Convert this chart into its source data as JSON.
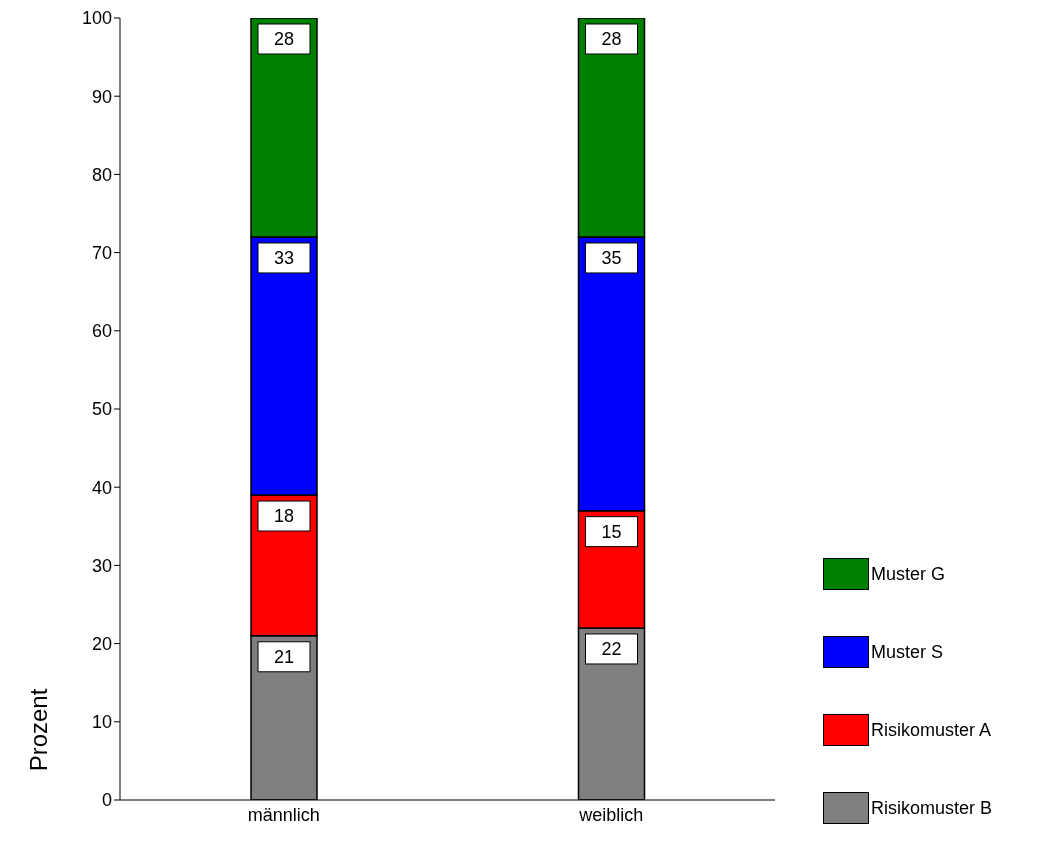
{
  "chart_data": {
    "type": "bar",
    "stacked": true,
    "ylabel": "Prozent",
    "categories": [
      "männlich",
      "weiblich"
    ],
    "series": [
      {
        "name": "Risikomuster B",
        "color": "#808080",
        "values": [
          21,
          22
        ]
      },
      {
        "name": "Risikomuster A",
        "color": "#ff0000",
        "values": [
          18,
          15
        ]
      },
      {
        "name": "Muster S",
        "color": "#0000ff",
        "values": [
          33,
          35
        ]
      },
      {
        "name": "Muster G",
        "color": "#008000",
        "values": [
          28,
          28
        ]
      }
    ],
    "ylim": [
      0,
      100
    ],
    "yticks": [
      0,
      10,
      20,
      30,
      40,
      50,
      60,
      70,
      80,
      90,
      100
    ],
    "data_labels": true,
    "legend": "bottom right",
    "grid": false
  }
}
